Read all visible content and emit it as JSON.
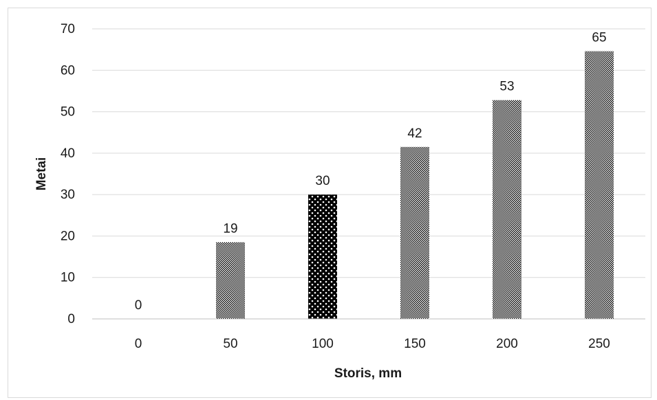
{
  "chart_data": {
    "type": "bar",
    "categories": [
      "0",
      "50",
      "100",
      "150",
      "200",
      "250"
    ],
    "values": [
      0,
      18.5,
      30,
      41.5,
      52.8,
      64.6
    ],
    "data_labels": [
      "0",
      "19",
      "30",
      "42",
      "53",
      "65"
    ],
    "highlight_index": 2,
    "xlabel": "Storis, mm",
    "ylabel": "Metai",
    "ylim": [
      0,
      70
    ],
    "yticks": [
      "0",
      "10",
      "20",
      "30",
      "40",
      "50",
      "60",
      "70"
    ],
    "grid": "horizontal",
    "legend": "none",
    "colors": {
      "bar": "#000000",
      "highlight_bar": "#000000",
      "gridline": "#d9d9d9",
      "axis": "#bfbfbf",
      "text": "#1a1a1a"
    }
  }
}
